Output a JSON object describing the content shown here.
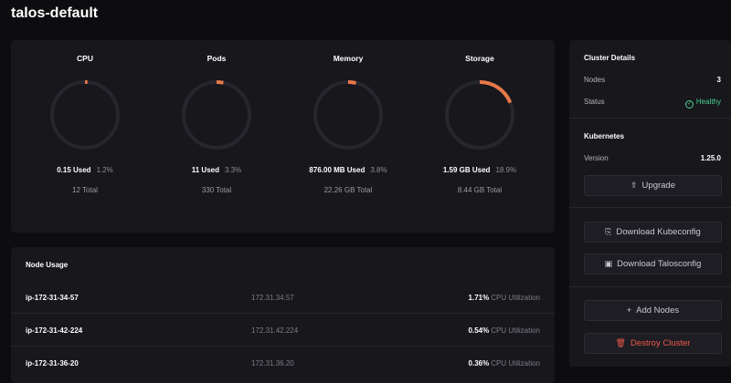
{
  "page": {
    "title": "talos-default"
  },
  "usage": {
    "accent_color": "#e8784a",
    "track_color": "#26262d",
    "gauges": [
      {
        "title": "CPU",
        "used": "0.15 Used",
        "percent_label": "1.2%",
        "total": "12 Total",
        "percent": 1.2
      },
      {
        "title": "Pods",
        "used": "11 Used",
        "percent_label": "3.3%",
        "total": "330 Total",
        "percent": 3.3
      },
      {
        "title": "Memory",
        "used": "876.00 MB Used",
        "percent_label": "3.8%",
        "total": "22.26 GB Total",
        "percent": 3.8
      },
      {
        "title": "Storage",
        "used": "1.59 GB Used",
        "percent_label": "18.9%",
        "total": "8.44 GB Total",
        "percent": 18.9
      }
    ]
  },
  "node_usage": {
    "title": "Node Usage",
    "util_label": "CPU Utilization",
    "rows": [
      {
        "name": "ip-172-31-34-57",
        "ip": "172.31.34.57",
        "util": "1.71%"
      },
      {
        "name": "ip-172-31-42-224",
        "ip": "172.31.42.224",
        "util": "0.54%"
      },
      {
        "name": "ip-172-31-36-20",
        "ip": "172.31.36.20",
        "util": "0.36%"
      }
    ]
  },
  "sidebar": {
    "cluster_details": {
      "heading": "Cluster Details",
      "nodes_label": "Nodes",
      "nodes_value": "3",
      "status_label": "Status",
      "status_value": "Healthy"
    },
    "kubernetes": {
      "heading": "Kubernetes",
      "version_label": "Version",
      "version_value": "1.25.0",
      "upgrade_label": "Upgrade"
    },
    "download_kubeconfig_label": "Download Kubeconfig",
    "download_talosconfig_label": "Download Talosconfig",
    "add_nodes_label": "Add Nodes",
    "destroy_cluster_label": "Destroy Cluster",
    "icons": {
      "status": "check-circle-icon",
      "upgrade": "upload-icon",
      "kubeconfig": "file-download-icon",
      "talosconfig": "terminal-icon",
      "add": "plus-icon",
      "destroy": "trash-icon"
    }
  }
}
